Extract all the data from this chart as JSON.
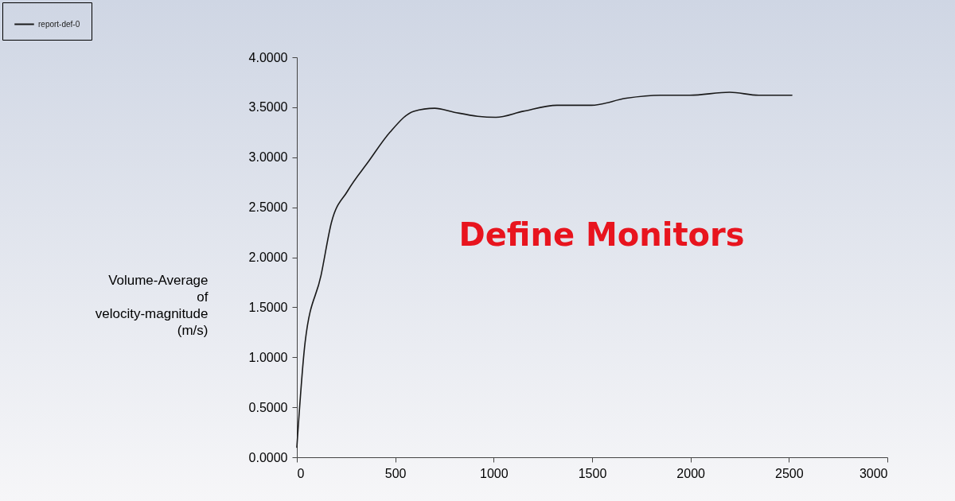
{
  "chart_data": {
    "type": "line",
    "ylabel": "Volume-Average\nof\nvelocity-magnitude\n(m/s)",
    "annotations": [
      "Define Monitors"
    ],
    "x": [
      0,
      42,
      123,
      176,
      257,
      365,
      473,
      594,
      700,
      800,
      918,
      1011,
      1150,
      1322,
      1497,
      1673,
      1848,
      1996,
      2199,
      2346,
      2515
    ],
    "series": [
      {
        "name": "report-def-0",
        "color": "#1a1a1a",
        "values": [
          0.1,
          1.15,
          1.82,
          2.35,
          2.66,
          2.96,
          3.25,
          3.46,
          3.49,
          3.45,
          3.41,
          3.4,
          3.46,
          3.52,
          3.52,
          3.59,
          3.62,
          3.62,
          3.65,
          3.62,
          3.62
        ]
      }
    ],
    "xlim": [
      0,
      3000
    ],
    "xticks": [
      0,
      500,
      1000,
      1500,
      2000,
      2500,
      3000
    ],
    "ylim": [
      0,
      4
    ],
    "yticks": [
      {
        "value": 0,
        "label": "0.0000"
      },
      {
        "value": 0.5,
        "label": "0.5000"
      },
      {
        "value": 1,
        "label": "1.0000"
      },
      {
        "value": 1.5,
        "label": "1.5000"
      },
      {
        "value": 2,
        "label": "2.0000"
      },
      {
        "value": 2.5,
        "label": "2.5000"
      },
      {
        "value": 3,
        "label": "3.0000"
      },
      {
        "value": 3.5,
        "label": "3.5000"
      },
      {
        "value": 4,
        "label": "4.0000"
      }
    ],
    "grid": false,
    "legend": "top left",
    "marker": "none",
    "line_style": "solid"
  }
}
